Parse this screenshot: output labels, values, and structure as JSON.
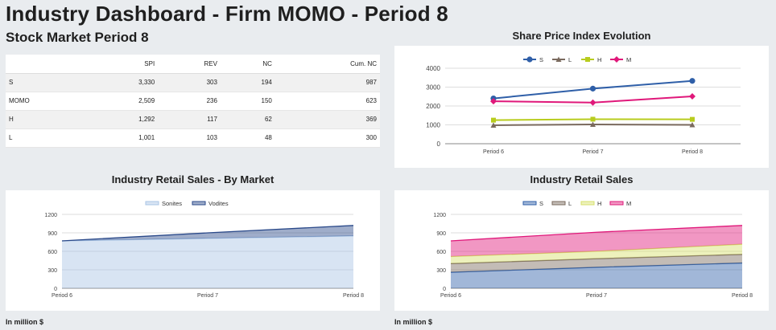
{
  "page": {
    "title": "Industry Dashboard - Firm MOMO - Period 8",
    "subtitle": "Stock Market Period 8"
  },
  "stock_table": {
    "headers": [
      "",
      "SPI",
      "REV",
      "NC",
      "Cum. NC"
    ],
    "rows": [
      [
        "S",
        "3,330",
        "303",
        "194",
        "987"
      ],
      [
        "MOMO",
        "2,509",
        "236",
        "150",
        "623"
      ],
      [
        "H",
        "1,292",
        "117",
        "62",
        "369"
      ],
      [
        "L",
        "1,001",
        "103",
        "48",
        "300"
      ]
    ]
  },
  "panels": {
    "spi_title": "Share Price Index Evolution",
    "market_title": "Industry Retail Sales - By Market",
    "sales_title": "Industry Retail Sales",
    "footnote_left": "In million $",
    "footnote_right": "In million $"
  },
  "chart_data": [
    {
      "type": "line",
      "title": "Share Price Index Evolution",
      "categories": [
        "Period 6",
        "Period 7",
        "Period 8"
      ],
      "ylim": [
        0,
        4000
      ],
      "yticks": [
        0,
        1000,
        2000,
        3000,
        4000
      ],
      "legend": "top",
      "series": [
        {
          "name": "S",
          "values": [
            2400,
            2920,
            3330
          ],
          "color": "#2f5fa8",
          "marker": "circle"
        },
        {
          "name": "L",
          "values": [
            980,
            1020,
            1001
          ],
          "color": "#7a6a5e",
          "marker": "triangle"
        },
        {
          "name": "H",
          "values": [
            1250,
            1300,
            1292
          ],
          "color": "#b8cc1e",
          "marker": "square"
        },
        {
          "name": "M",
          "values": [
            2250,
            2180,
            2509
          ],
          "color": "#e0187a",
          "marker": "diamond"
        }
      ]
    },
    {
      "type": "area",
      "title": "Industry Retail Sales - By Market",
      "categories": [
        "Period 6",
        "Period 7",
        "Period 8"
      ],
      "ylim": [
        0,
        1200
      ],
      "yticks": [
        0,
        300,
        600,
        900,
        1200
      ],
      "legend": "top",
      "stacked": true,
      "series": [
        {
          "name": "Sonites",
          "values": [
            770,
            810,
            850
          ],
          "color": "#a9c4e4"
        },
        {
          "name": "Vodites",
          "values": [
            0,
            90,
            170
          ],
          "color": "#2b4a8a"
        }
      ]
    },
    {
      "type": "area",
      "title": "Industry Retail Sales",
      "categories": [
        "Period 6",
        "Period 7",
        "Period 8"
      ],
      "ylim": [
        0,
        1200
      ],
      "yticks": [
        0,
        300,
        600,
        900,
        1200
      ],
      "legend": "top",
      "stacked": true,
      "series": [
        {
          "name": "S",
          "values": [
            260,
            340,
            410
          ],
          "color": "#2f5fa8"
        },
        {
          "name": "L",
          "values": [
            140,
            140,
            140
          ],
          "color": "#7a6a5e"
        },
        {
          "name": "H",
          "values": [
            115,
            120,
            165
          ],
          "color": "#d6e06a"
        },
        {
          "name": "M",
          "values": [
            255,
            310,
            305
          ],
          "color": "#e0187a"
        }
      ]
    }
  ]
}
